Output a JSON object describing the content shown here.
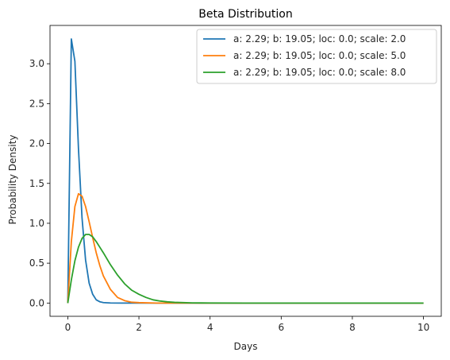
{
  "chart_data": {
    "type": "line",
    "title": "Beta Distribution",
    "xlabel": "Days",
    "ylabel": "Probability Density",
    "xlim": [
      -0.5,
      10.5
    ],
    "ylim": [
      -0.166,
      3.48
    ],
    "x_ticks": [
      0,
      2,
      4,
      6,
      8,
      10
    ],
    "x_tick_labels": [
      "0",
      "2",
      "4",
      "6",
      "8",
      "10"
    ],
    "y_ticks": [
      0.0,
      0.5,
      1.0,
      1.5,
      2.0,
      2.5,
      3.0
    ],
    "y_tick_labels": [
      "0.0",
      "0.5",
      "1.0",
      "1.5",
      "2.0",
      "2.5",
      "3.0"
    ],
    "grid": false,
    "legend_position": "top-right",
    "series": [
      {
        "name": "a: 2.29; b: 19.05; loc: 0.0; scale: 2.0",
        "color": "#1f77b4",
        "x": [
          0,
          0.1,
          0.2,
          0.3,
          0.4,
          0.5,
          0.6,
          0.7,
          0.8,
          0.9,
          1.0,
          1.2,
          1.5,
          2.0,
          3.0,
          4.0,
          6.0,
          8.0,
          10.0
        ],
        "y": [
          0,
          3.31,
          3.03,
          1.94,
          1.07,
          0.54,
          0.25,
          0.11,
          0.04,
          0.016,
          0.006,
          0.001,
          0,
          0,
          0,
          0,
          0,
          0,
          0
        ]
      },
      {
        "name": "a: 2.29; b: 19.05; loc: 0.0; scale: 5.0",
        "color": "#ff7f0e",
        "x": [
          0,
          0.1,
          0.2,
          0.3,
          0.4,
          0.5,
          0.6,
          0.7,
          0.8,
          0.9,
          1.0,
          1.2,
          1.4,
          1.6,
          1.8,
          2.0,
          2.5,
          3.0,
          4.0,
          6.0,
          8.0,
          10.0
        ],
        "y": [
          0,
          0.77,
          1.21,
          1.37,
          1.34,
          1.21,
          1.02,
          0.82,
          0.63,
          0.47,
          0.34,
          0.17,
          0.07,
          0.03,
          0.01,
          0.005,
          0,
          0,
          0,
          0,
          0,
          0
        ]
      },
      {
        "name": "a: 2.29; b: 19.05; loc: 0.0; scale: 8.0",
        "color": "#2ca02c",
        "x": [
          0,
          0.1,
          0.2,
          0.3,
          0.4,
          0.5,
          0.6,
          0.7,
          0.8,
          0.9,
          1.0,
          1.2,
          1.4,
          1.6,
          1.8,
          2.0,
          2.2,
          2.4,
          2.6,
          2.8,
          3.0,
          3.5,
          4.0,
          5.0,
          6.0,
          8.0,
          10.0
        ],
        "y": [
          0,
          0.29,
          0.53,
          0.7,
          0.81,
          0.86,
          0.86,
          0.83,
          0.77,
          0.7,
          0.63,
          0.48,
          0.35,
          0.24,
          0.16,
          0.11,
          0.07,
          0.04,
          0.025,
          0.015,
          0.009,
          0.002,
          0.001,
          0,
          0,
          0,
          0
        ]
      }
    ]
  }
}
